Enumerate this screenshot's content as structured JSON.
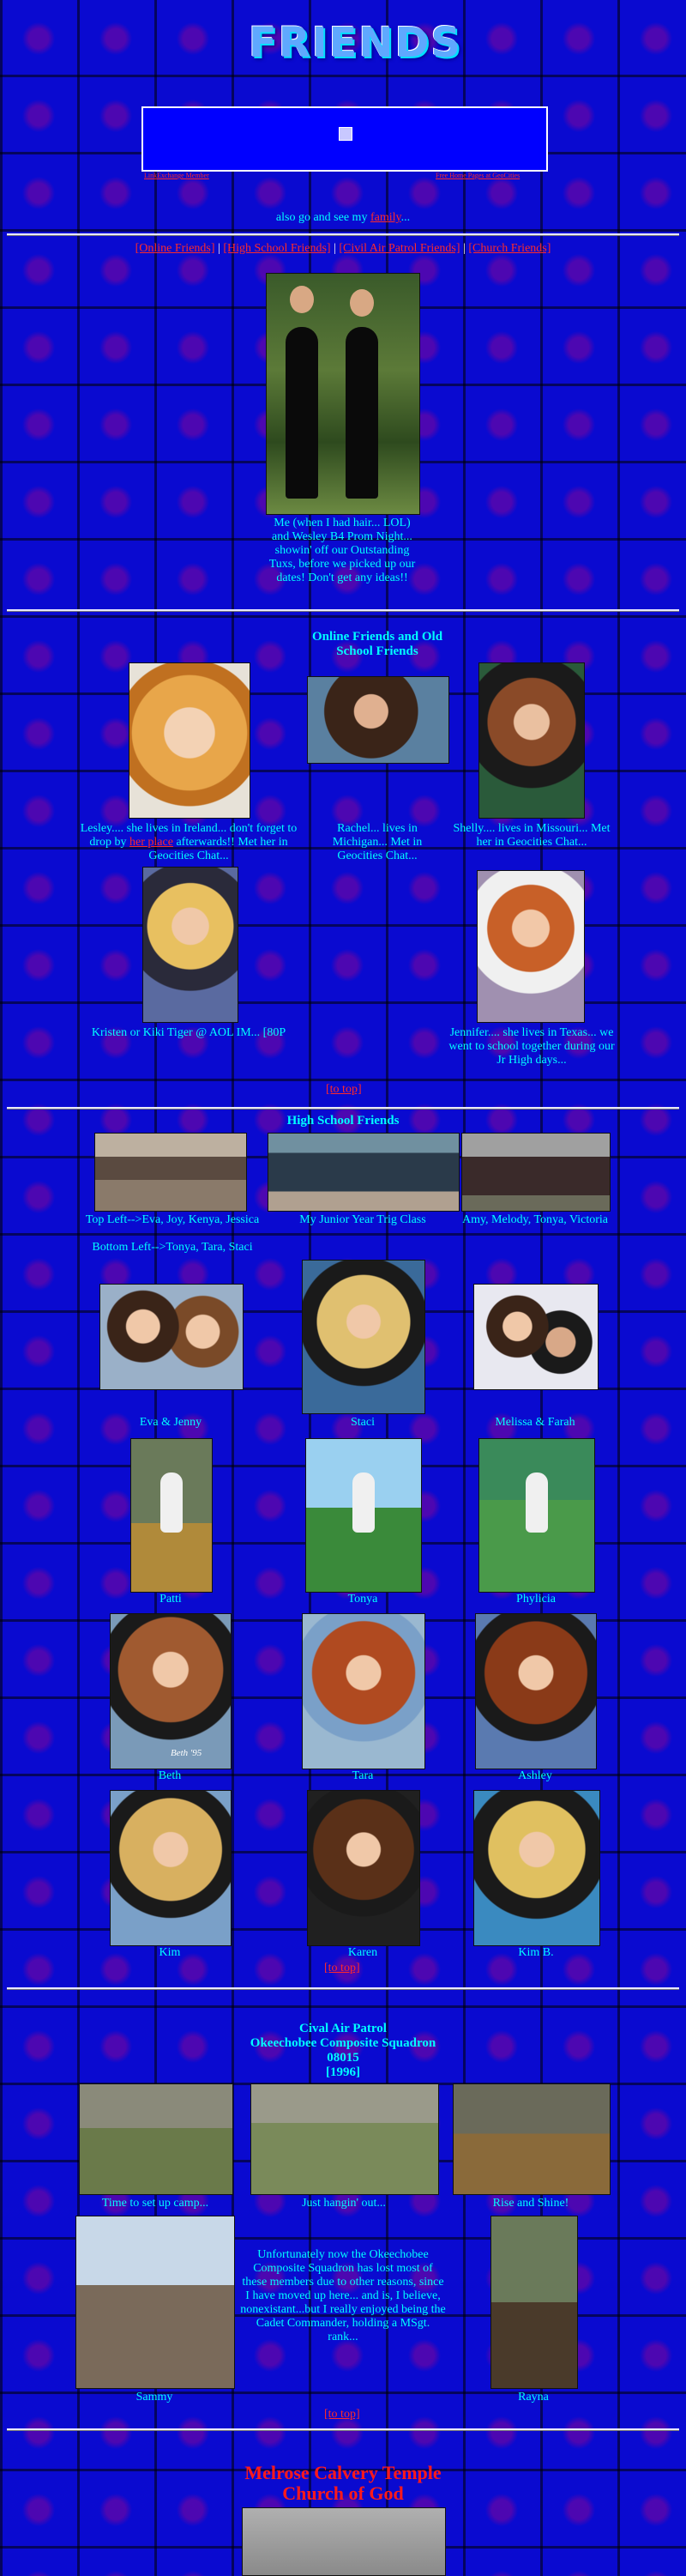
{
  "header": {
    "title": "FRIENDS",
    "guestbook_left": "LinkExchange Member",
    "guestbook_right": "Free Home Pages at GeoCities",
    "also_text_before": "also go and see my ",
    "also_link": "family",
    "also_text_after": "..."
  },
  "nav": {
    "items": [
      "[Online Friends]",
      "[High School Friends]",
      "[Civil Air Patrol Friends]",
      "[Church Friends]"
    ],
    "separator": "|"
  },
  "intro": {
    "caption": "Me (when I had hair... LOL) and Wesley B4 Prom Night... showin' off our Outstanding Tuxs, before we picked up our dates! Don't get any ideas!!"
  },
  "online": {
    "heading_line1": "Online Friends and Old",
    "heading_line2": "School Friends",
    "lesley_a": "Lesley.... she lives in Ireland... don't forget to drop by ",
    "lesley_link": "her place",
    "lesley_b": " afterwards!! Met her in Geocities Chat...",
    "rachel": "Rachel... lives in Michigan... Met in Geocities Chat...",
    "shelly": "Shelly.... lives in Missouri... Met her in Geocities Chat...",
    "kristen": "Kristen or Kiki Tiger @ AOL IM... [80P",
    "jennifer": "Jennifer.... she lives in Texas... we went to school together during our Jr High days..."
  },
  "totop": "[to top]",
  "highschool": {
    "heading": "High School Friends",
    "group1": "Top Left-->Eva, Joy, Kenya, Jessica",
    "group1b": "Bottom Left-->Tonya, Tara, Staci",
    "class": "My Junior Year Trig Class",
    "amy": "Amy, Melody, Tonya, Victoria",
    "eva": "Eva & Jenny",
    "staci": "Staci",
    "melissa": "Melissa & Farah",
    "patti": "Patti",
    "tonya": "Tonya",
    "phylicia": "Phylicia",
    "beth": "Beth",
    "beth_sig": "Beth '95",
    "tara": "Tara",
    "ashley": "Ashley",
    "kim": "Kim",
    "karen": "Karen",
    "kimb": "Kim B."
  },
  "cap": {
    "line1": "Cival Air Patrol",
    "line2": "Okeechobee Composite Squadron",
    "line3": "08015",
    "line4": "[1996]",
    "camp": "Time to set up camp...",
    "hangin": "Just hangin' out...",
    "rise": "Rise and Shine!",
    "story": "Unfortunately now the Okeechobee Composite Squadron has lost most of these members due to other reasons, since I have moved up here... and is, I believe, nonexistant...but I really enjoyed being the Cadet Commander, holding a MSgt. rank...",
    "sammy": "Sammy",
    "rayna": "Rayna"
  },
  "church": {
    "line1": "Melrose Calvery Temple",
    "line2": "Church of God"
  },
  "colors": {
    "background": "#0a0ad0",
    "text": "#00ffff",
    "link": "#ff2a2a",
    "church_title": "#ff1a1a"
  }
}
